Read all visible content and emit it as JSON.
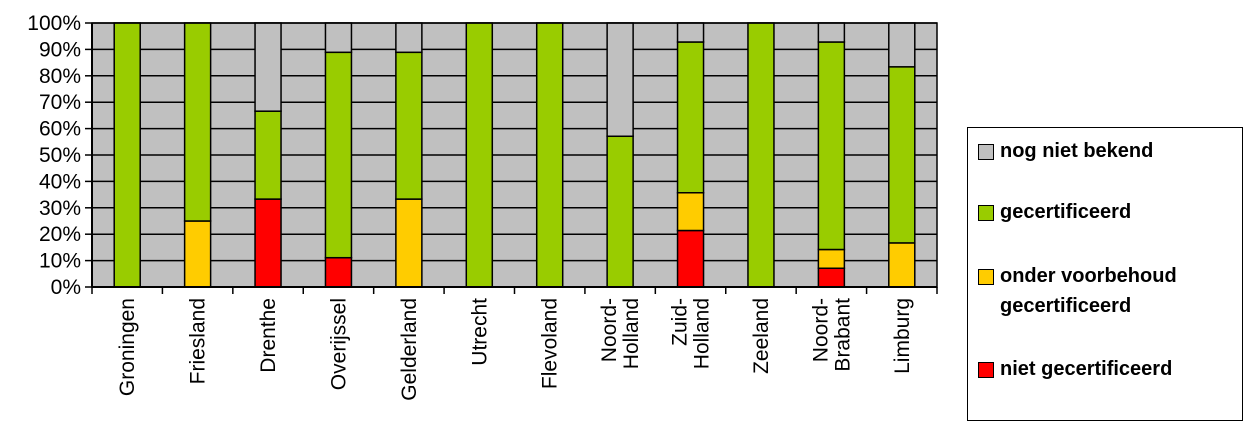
{
  "chart_data": {
    "type": "bar",
    "stacked": true,
    "percent": true,
    "categories": [
      [
        "Groningen"
      ],
      [
        "Friesland"
      ],
      [
        "Drenthe"
      ],
      [
        "Overijssel"
      ],
      [
        "Gelderland"
      ],
      [
        "Utrecht"
      ],
      [
        "Flevoland"
      ],
      [
        "Noord-",
        "Holland"
      ],
      [
        "Zuid-",
        "Holland"
      ],
      [
        "Zeeland"
      ],
      [
        "Noord-",
        "Brabant"
      ],
      [
        "Limburg"
      ]
    ],
    "series": [
      {
        "name": "niet gecertificeerd",
        "color": "#ff0000",
        "values": [
          0,
          0,
          33.3,
          11.1,
          0,
          0,
          0,
          0,
          21.4,
          0,
          7.1,
          0
        ]
      },
      {
        "name": "onder voorbehoud gecertificeerd",
        "color": "#ffcc00",
        "values": [
          0,
          25,
          0,
          0,
          33.3,
          0,
          0,
          0,
          14.3,
          0,
          7.1,
          16.7
        ]
      },
      {
        "name": "gecertificeerd",
        "color": "#99cc00",
        "values": [
          100,
          75,
          33.3,
          77.8,
          55.6,
          100,
          100,
          57.1,
          57.1,
          100,
          78.6,
          66.7
        ]
      },
      {
        "name": "nog niet bekend",
        "color": "#c0c0c0",
        "values": [
          0,
          0,
          33.4,
          11.1,
          11.1,
          0,
          0,
          42.9,
          7.2,
          0,
          7.2,
          16.6
        ]
      }
    ],
    "yticks": [
      "0%",
      "10%",
      "20%",
      "30%",
      "40%",
      "50%",
      "60%",
      "70%",
      "80%",
      "90%",
      "100%"
    ],
    "ylim": [
      0,
      100
    ],
    "plot_background": "#c0c0c0",
    "grid": true,
    "legend_position": "right",
    "legend_order": [
      "nog niet bekend",
      "gecertificeerd",
      "onder voorbehoud gecertificeerd",
      "niet gecertificeerd"
    ],
    "legend_labels": [
      [
        "nog niet bekend"
      ],
      [
        "gecertificeerd"
      ],
      [
        "onder voorbehoud",
        "gecertificeerd"
      ],
      [
        "niet gecertificeerd"
      ]
    ]
  }
}
